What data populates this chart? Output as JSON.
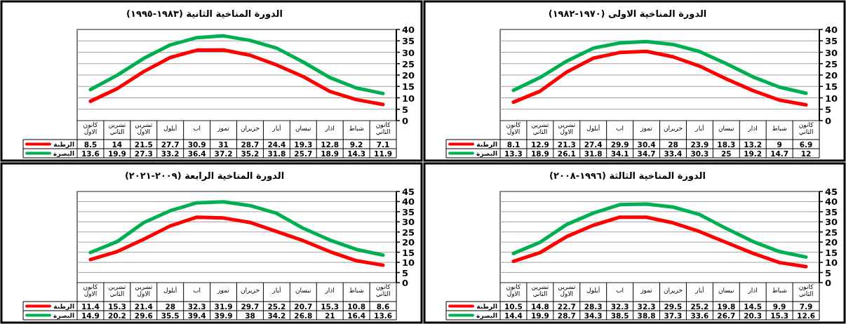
{
  "chart_data": [
    {
      "type": "line",
      "title": "الدورة المناخية الاولى (١٩٧٠-١٩٨٢)",
      "categories": [
        "كانون\nالاول",
        "تشرين\nالثاني",
        "تشرين\nالاول",
        "أيلول",
        "اب",
        "تموز",
        "حزيران",
        "أيار",
        "نيسان",
        "اذار",
        "شباط",
        "كانون\nالثاني"
      ],
      "ylim": [
        0,
        40
      ],
      "yticks": [
        0,
        5,
        10,
        15,
        20,
        25,
        30,
        35,
        40
      ],
      "grid": "y",
      "legend": "bottom",
      "data_labels": true,
      "series": [
        {
          "name": "الرطبة",
          "color": "#ff0000",
          "values": [
            8.1,
            12.9,
            21.3,
            27.4,
            29.9,
            30.4,
            28,
            23.9,
            18.3,
            13.2,
            9,
            6.9
          ]
        },
        {
          "name": "البصرة",
          "color": "#00b050",
          "values": [
            13.3,
            18.9,
            26.1,
            31.8,
            34.1,
            34.7,
            33.4,
            30.3,
            25,
            19.2,
            14.7,
            12
          ]
        }
      ]
    },
    {
      "type": "line",
      "title": "الدورة المناخية الثانية (١٩٨٣-١٩٩٥)",
      "categories": [
        "كانون\nالاول",
        "تشرين\nالثاني",
        "تشرين\nالاول",
        "أيلول",
        "اب",
        "تموز",
        "حزيران",
        "أيار",
        "نيسان",
        "اذار",
        "شباط",
        "كانون\nالثاني"
      ],
      "ylim": [
        0,
        40
      ],
      "yticks": [
        0,
        5,
        10,
        15,
        20,
        25,
        30,
        35,
        40
      ],
      "grid": "y",
      "legend": "bottom",
      "data_labels": true,
      "series": [
        {
          "name": "الرطبة",
          "color": "#ff0000",
          "values": [
            8.5,
            14,
            21.5,
            27.7,
            30.9,
            31,
            28.7,
            24.4,
            19.3,
            12.8,
            9.2,
            7.1
          ]
        },
        {
          "name": "البصرة",
          "color": "#00b050",
          "values": [
            13.6,
            19.9,
            27.3,
            33.2,
            36.4,
            37.2,
            35.2,
            31.8,
            25.7,
            18.9,
            14.3,
            11.9
          ]
        }
      ]
    },
    {
      "type": "line",
      "title": "الدورة المناخية الثالثة (١٩٩٦-٢٠٠٨)",
      "categories": [
        "كانون\nالاول",
        "تشرين\nالثاني",
        "تشرين\nالاول",
        "أيلول",
        "اب",
        "تموز",
        "حزيران",
        "أيار",
        "نيسان",
        "اذار",
        "شباط",
        "كانون\nالثاني"
      ],
      "ylim": [
        0,
        45
      ],
      "yticks": [
        0,
        5,
        10,
        15,
        20,
        25,
        30,
        35,
        40,
        45
      ],
      "grid": "y",
      "legend": "bottom",
      "data_labels": true,
      "series": [
        {
          "name": "الرطبة",
          "color": "#ff0000",
          "values": [
            10.5,
            14.8,
            22.7,
            28.3,
            32.3,
            32.3,
            29.5,
            25.2,
            19.8,
            14.5,
            9.9,
            7.9
          ]
        },
        {
          "name": "البصرة",
          "color": "#00b050",
          "values": [
            14.4,
            19.9,
            28.7,
            34.3,
            38.5,
            38.8,
            37.3,
            33.6,
            26.7,
            20.3,
            15.3,
            12.6
          ]
        }
      ]
    },
    {
      "type": "line",
      "title": "الدورة المناخية الرابعة (٢٠٠٩-٢٠٢١)",
      "categories": [
        "كانون\nالاول",
        "تشرين\nالثاني",
        "تشرين\nالاول",
        "أيلول",
        "اب",
        "تموز",
        "حزيران",
        "أيار",
        "نيسان",
        "اذار",
        "شباط",
        "كانون\nالثاني"
      ],
      "ylim": [
        0,
        45
      ],
      "yticks": [
        0,
        5,
        10,
        15,
        20,
        25,
        30,
        35,
        40,
        45
      ],
      "grid": "y",
      "legend": "bottom",
      "data_labels": true,
      "series": [
        {
          "name": "الرطبة",
          "color": "#ff0000",
          "values": [
            11.4,
            15.3,
            21.4,
            28,
            32.3,
            31.9,
            29.7,
            25.2,
            20.7,
            15.3,
            10.8,
            8.6
          ]
        },
        {
          "name": "البصرة",
          "color": "#00b050",
          "values": [
            14.9,
            20.2,
            29.6,
            35.5,
            39.4,
            39.9,
            38,
            34.2,
            26.8,
            21,
            16.4,
            13.6
          ]
        }
      ]
    }
  ]
}
